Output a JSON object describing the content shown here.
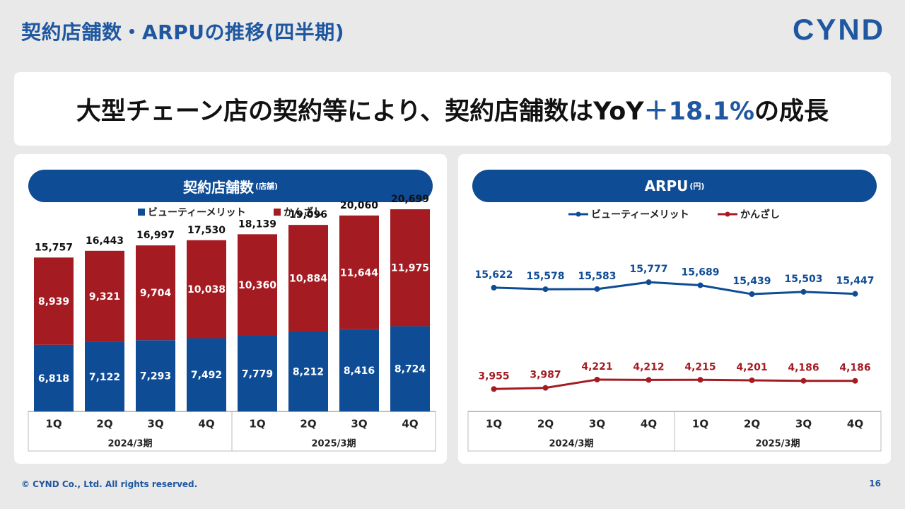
{
  "page": {
    "title": "契約店舗数・ARPUの推移(四半期)",
    "logo": "CYND",
    "headline_prefix": "大型チェーン店の契約等により、契約店舗数はYoY",
    "headline_highlight": "＋18.1%",
    "headline_suffix": "の成長",
    "footer": "© CYND Co., Ltd. All rights reserved.",
    "page_number": "16"
  },
  "colors": {
    "blue": "#0f4c96",
    "red": "#a51b22",
    "accent": "#1f57a0"
  },
  "chart_data": [
    {
      "type": "bar",
      "stacked": true,
      "title": "契約店舗数",
      "unit": "(店舗)",
      "categories": [
        "1Q",
        "2Q",
        "3Q",
        "4Q",
        "1Q",
        "2Q",
        "3Q",
        "4Q"
      ],
      "groups": [
        {
          "label": "2024/3期",
          "count": 4
        },
        {
          "label": "2025/3期",
          "count": 4
        }
      ],
      "series": [
        {
          "name": "ビューティーメリット",
          "values": [
            6818,
            7122,
            7293,
            7492,
            7779,
            8212,
            8416,
            8724
          ]
        },
        {
          "name": "かんざし",
          "values": [
            8939,
            9321,
            9704,
            10038,
            10360,
            10884,
            11644,
            11975
          ]
        }
      ],
      "totals": [
        15757,
        16443,
        16997,
        17530,
        18139,
        19096,
        20060,
        20699
      ],
      "ylim": [
        0,
        22000
      ],
      "legend": "top"
    },
    {
      "type": "line",
      "title": "ARPU",
      "unit": "(円)",
      "categories": [
        "1Q",
        "2Q",
        "3Q",
        "4Q",
        "1Q",
        "2Q",
        "3Q",
        "4Q"
      ],
      "groups": [
        {
          "label": "2024/3期",
          "count": 4
        },
        {
          "label": "2025/3期",
          "count": 4
        }
      ],
      "series": [
        {
          "name": "ビューティーメリット",
          "values": [
            15622,
            15578,
            15583,
            15777,
            15689,
            15439,
            15503,
            15447
          ]
        },
        {
          "name": "かんざし",
          "values": [
            3955,
            3987,
            4221,
            4212,
            4215,
            4201,
            4186,
            4186
          ]
        }
      ],
      "legend": "top"
    }
  ]
}
